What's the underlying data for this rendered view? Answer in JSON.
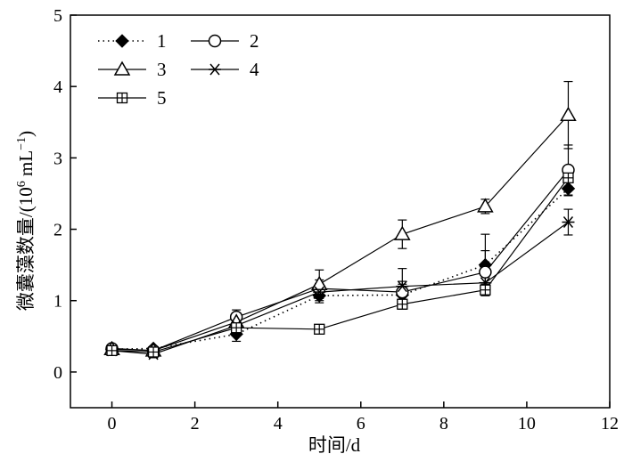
{
  "chart_data": {
    "type": "line",
    "xlabel": "时间/d",
    "ylabel_main": "微囊藻数量/(10",
    "ylabel_sup": "6",
    "ylabel_unit": " mL",
    "ylabel_unit_sup": "−1",
    "ylabel_close": ")",
    "xlim": [
      -1,
      12
    ],
    "ylim": [
      -0.5,
      5
    ],
    "xticks": [
      0,
      2,
      4,
      6,
      8,
      10,
      12
    ],
    "yticks": [
      0,
      1,
      2,
      3,
      4,
      5
    ],
    "grid": false,
    "legend_position": "top-left",
    "series": [
      {
        "name": "1",
        "marker": "filled-diamond",
        "line": "dotted",
        "x": [
          0,
          1,
          3,
          5,
          7,
          9,
          11
        ],
        "y": [
          0.32,
          0.33,
          0.53,
          1.07,
          1.08,
          1.5,
          2.57
        ],
        "err": [
          0.03,
          0.03,
          0.1,
          0.1,
          0.15,
          0.43,
          0.1
        ]
      },
      {
        "name": "2",
        "marker": "open-circle",
        "line": "solid",
        "x": [
          0,
          1,
          3,
          5,
          7,
          9,
          11
        ],
        "y": [
          0.33,
          0.3,
          0.77,
          1.17,
          1.12,
          1.4,
          2.83
        ],
        "err": [
          0.03,
          0.03,
          0.1,
          0.12,
          0.15,
          0.3,
          0.35
        ]
      },
      {
        "name": "3",
        "marker": "open-triangle",
        "line": "solid",
        "x": [
          0,
          1,
          3,
          5,
          7,
          9,
          11
        ],
        "y": [
          0.32,
          0.3,
          0.7,
          1.23,
          1.93,
          2.32,
          3.6
        ],
        "err": [
          0.03,
          0.03,
          0.08,
          0.2,
          0.2,
          0.1,
          0.47
        ]
      },
      {
        "name": "4",
        "marker": "asterisk",
        "line": "solid",
        "x": [
          0,
          1,
          3,
          5,
          7,
          9,
          11
        ],
        "y": [
          0.3,
          0.25,
          0.65,
          1.12,
          1.2,
          1.25,
          2.1
        ],
        "err": [
          0.03,
          0.05,
          0.1,
          0.12,
          0.25,
          0.15,
          0.18
        ]
      },
      {
        "name": "5",
        "marker": "boxed-plus",
        "line": "solid",
        "x": [
          0,
          1,
          3,
          5,
          7,
          9,
          11
        ],
        "y": [
          0.3,
          0.28,
          0.62,
          0.6,
          0.95,
          1.15,
          2.72
        ],
        "err": [
          0.02,
          0.03,
          0.05,
          0.03,
          0.07,
          0.08,
          0.12
        ]
      }
    ]
  }
}
